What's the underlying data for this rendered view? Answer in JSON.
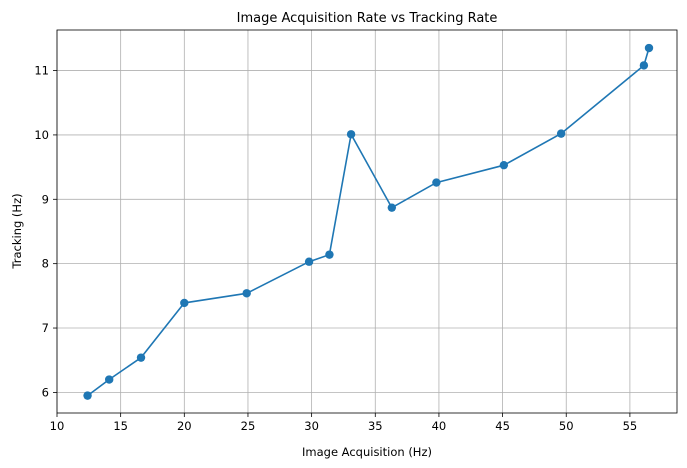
{
  "chart_data": {
    "type": "line",
    "title": "Image Acquisition Rate vs Tracking Rate",
    "xlabel": "Image Acquisition (Hz)",
    "ylabel": "Tracking (Hz)",
    "xlim": [
      10,
      58.7
    ],
    "ylim": [
      5.68,
      11.63
    ],
    "xticks": [
      10,
      15,
      20,
      25,
      30,
      35,
      40,
      45,
      50,
      55
    ],
    "yticks": [
      6,
      7,
      8,
      9,
      10,
      11
    ],
    "grid": true,
    "marker": "circle",
    "color": "#1f77b4",
    "x": [
      12.4,
      14.1,
      16.6,
      20.0,
      24.9,
      29.8,
      31.4,
      33.1,
      36.3,
      39.8,
      45.1,
      49.6,
      56.1,
      56.5
    ],
    "y": [
      5.95,
      6.2,
      6.54,
      7.39,
      7.54,
      8.03,
      8.14,
      10.01,
      8.87,
      9.26,
      9.53,
      10.02,
      11.08,
      11.35
    ]
  }
}
